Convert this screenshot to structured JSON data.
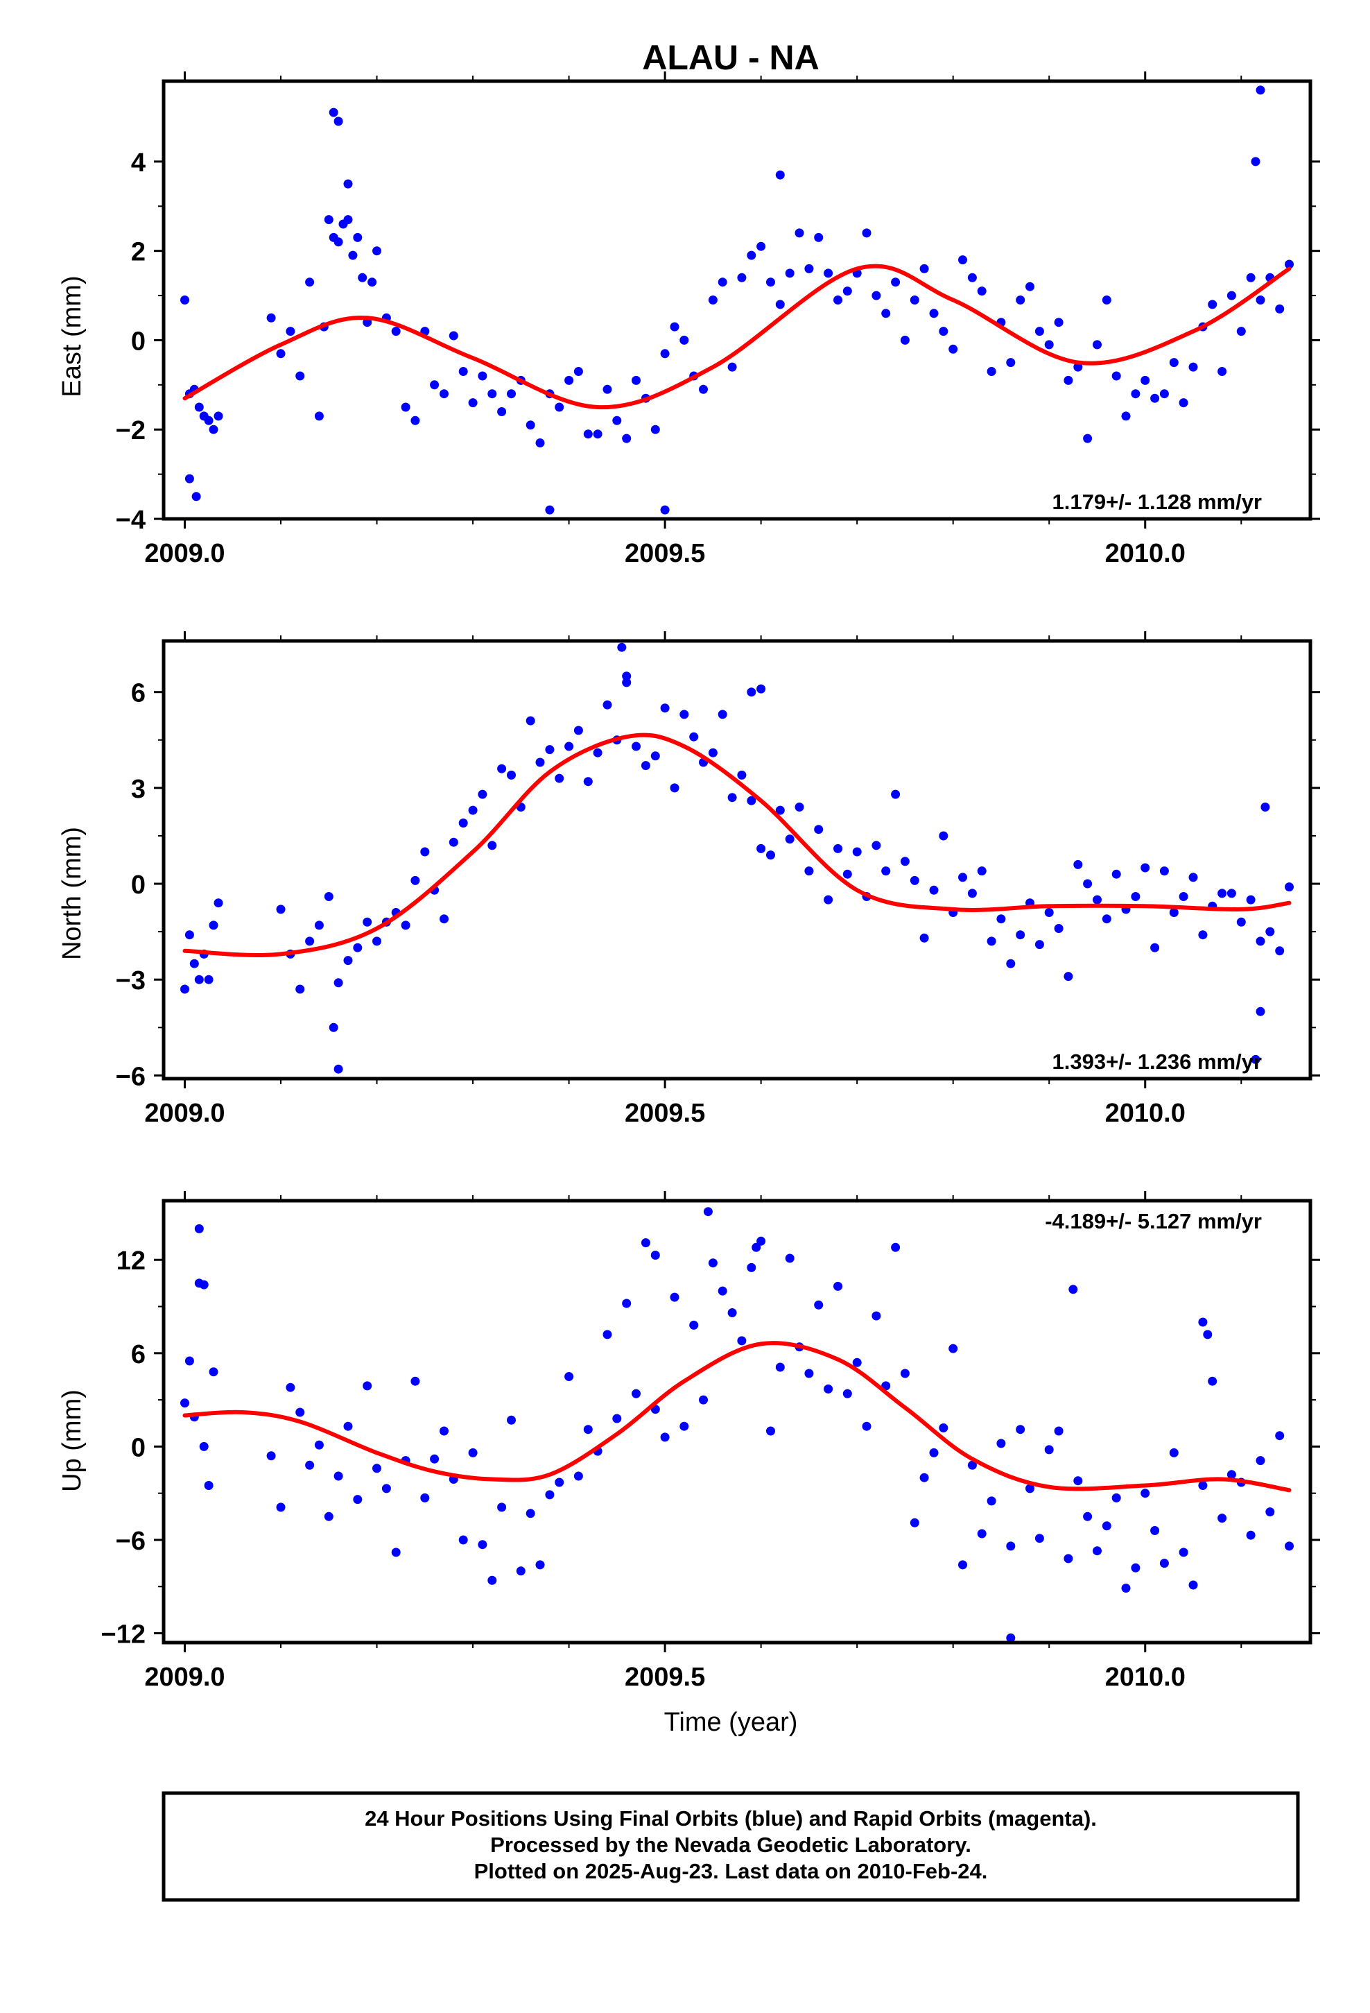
{
  "title": "ALAU - NA",
  "xlabel": "Time (year)",
  "footer": {
    "line1": "24 Hour Positions Using Final Orbits (blue) and Rapid Orbits (magenta).",
    "line2": "Processed by the Nevada Geodetic Laboratory.",
    "line3": "Plotted on 2025-Aug-23. Last data on 2010-Feb-24."
  },
  "colors": {
    "points": "#0000ff",
    "fit": "#ff0000",
    "frame": "#000000"
  },
  "chart_data": [
    {
      "type": "scatter",
      "name": "east",
      "ylabel": "East (mm)",
      "rate": "1.179+/- 1.128 mm/yr",
      "rate_position": "bottom-right",
      "xlim": [
        2008.978,
        2010.172
      ],
      "ylim": [
        -4.0,
        5.8
      ],
      "xticks": [
        2009.0,
        2009.5,
        2010.0
      ],
      "xtick_labels": [
        "2009.0",
        "2009.5",
        "2010.0"
      ],
      "yticks": [
        -4,
        -2,
        0,
        2,
        4
      ],
      "ytick_labels": [
        "−4",
        "−2",
        "0",
        "2",
        "4"
      ],
      "fit": {
        "x": [
          2009.0,
          2009.1,
          2009.19,
          2009.3,
          2009.43,
          2009.55,
          2009.7,
          2009.8,
          2009.93,
          2010.05,
          2010.15
        ],
        "y": [
          -1.3,
          -0.1,
          0.5,
          -0.4,
          -1.5,
          -0.6,
          1.6,
          0.9,
          -0.5,
          0.2,
          1.6
        ]
      },
      "points": {
        "x": [
          2009.0,
          2009.005,
          2009.01,
          2009.015,
          2009.02,
          2009.025,
          2009.03,
          2009.035,
          2009.09,
          2009.1,
          2009.11,
          2009.12,
          2009.13,
          2009.14,
          2009.145,
          2009.15,
          2009.155,
          2009.16,
          2009.165,
          2009.17,
          2009.175,
          2009.18,
          2009.185,
          2009.19,
          2009.195,
          2009.2,
          2009.21,
          2009.22,
          2009.23,
          2009.24,
          2009.25,
          2009.26,
          2009.27,
          2009.28,
          2009.29,
          2009.3,
          2009.31,
          2009.32,
          2009.33,
          2009.34,
          2009.35,
          2009.36,
          2009.37,
          2009.38,
          2009.39,
          2009.4,
          2009.41,
          2009.42,
          2009.43,
          2009.44,
          2009.45,
          2009.46,
          2009.47,
          2009.48,
          2009.49,
          2009.5,
          2009.51,
          2009.52,
          2009.53,
          2009.54,
          2009.55,
          2009.56,
          2009.57,
          2009.58,
          2009.59,
          2009.6,
          2009.61,
          2009.62,
          2009.63,
          2009.64,
          2009.65,
          2009.66,
          2009.67,
          2009.68,
          2009.69,
          2009.7,
          2009.71,
          2009.72,
          2009.73,
          2009.74,
          2009.75,
          2009.76,
          2009.77,
          2009.78,
          2009.79,
          2009.8,
          2009.81,
          2009.82,
          2009.83,
          2009.84,
          2009.85,
          2009.86,
          2009.87,
          2009.88,
          2009.89,
          2009.9,
          2009.91,
          2009.92,
          2009.93,
          2009.94,
          2009.95,
          2009.96,
          2009.97,
          2009.98,
          2009.99,
          2010.0,
          2010.01,
          2010.02,
          2010.03,
          2010.04,
          2010.05,
          2010.06,
          2010.07,
          2010.08,
          2010.09,
          2010.1,
          2010.11,
          2010.12,
          2010.13,
          2010.14,
          2010.15,
          2009.155,
          2009.16,
          2009.17,
          2009.38,
          2009.5,
          2009.62,
          2010.12,
          2010.115,
          2009.005,
          2009.012
        ],
        "y": [
          0.9,
          -1.2,
          -1.1,
          -1.5,
          -1.7,
          -1.8,
          -2.0,
          -1.7,
          0.5,
          -0.3,
          0.2,
          -0.8,
          1.3,
          -1.7,
          0.3,
          2.7,
          2.3,
          2.2,
          2.6,
          3.5,
          1.9,
          2.3,
          1.4,
          0.4,
          1.3,
          2.0,
          0.5,
          0.2,
          -1.5,
          -1.8,
          0.2,
          -1.0,
          -1.2,
          0.1,
          -0.7,
          -1.4,
          -0.8,
          -1.2,
          -1.6,
          -1.2,
          -0.9,
          -1.9,
          -2.3,
          -1.2,
          -1.5,
          -0.9,
          -0.7,
          -2.1,
          -2.1,
          -1.1,
          -1.8,
          -2.2,
          -0.9,
          -1.3,
          -2.0,
          -0.3,
          0.3,
          0.0,
          -0.8,
          -1.1,
          0.9,
          1.3,
          -0.6,
          1.4,
          1.9,
          2.1,
          1.3,
          0.8,
          1.5,
          2.4,
          1.6,
          2.3,
          1.5,
          0.9,
          1.1,
          1.5,
          2.4,
          1.0,
          0.6,
          1.3,
          0.0,
          0.9,
          1.6,
          0.6,
          0.2,
          -0.2,
          1.8,
          1.4,
          1.1,
          -0.7,
          0.4,
          -0.5,
          0.9,
          1.2,
          0.2,
          -0.1,
          0.4,
          -0.9,
          -0.6,
          -2.2,
          -0.1,
          0.9,
          -0.8,
          -1.7,
          -1.2,
          -0.9,
          -1.3,
          -1.2,
          -0.5,
          -1.4,
          -0.6,
          0.3,
          0.8,
          -0.7,
          1.0,
          0.2,
          1.4,
          0.9,
          1.4,
          0.7,
          1.7,
          5.1,
          4.9,
          2.7,
          -3.8,
          -3.8,
          3.7,
          5.6,
          4.0,
          -3.1,
          -3.5
        ],
        "rapid_x": [],
        "rapid_y": []
      }
    },
    {
      "type": "scatter",
      "name": "north",
      "ylabel": "North (mm)",
      "rate": "1.393+/- 1.236 mm/yr",
      "rate_position": "bottom-right",
      "xlim": [
        2008.978,
        2010.172
      ],
      "ylim": [
        -6.1,
        7.6
      ],
      "xticks": [
        2009.0,
        2009.5,
        2010.0
      ],
      "xtick_labels": [
        "2009.0",
        "2009.5",
        "2010.0"
      ],
      "yticks": [
        -6,
        -3,
        0,
        3,
        6
      ],
      "ytick_labels": [
        "−6",
        "−3",
        "0",
        "3",
        "6"
      ],
      "fit": {
        "x": [
          2009.0,
          2009.1,
          2009.2,
          2009.3,
          2009.38,
          2009.46,
          2009.52,
          2009.6,
          2009.7,
          2009.8,
          2009.9,
          2010.0,
          2010.1,
          2010.15
        ],
        "y": [
          -2.1,
          -2.2,
          -1.4,
          1.0,
          3.5,
          4.6,
          4.3,
          2.6,
          -0.2,
          -0.8,
          -0.7,
          -0.7,
          -0.8,
          -0.6
        ]
      },
      "points": {
        "x": [
          2009.0,
          2009.005,
          2009.01,
          2009.015,
          2009.02,
          2009.025,
          2009.03,
          2009.035,
          2009.1,
          2009.11,
          2009.12,
          2009.13,
          2009.14,
          2009.15,
          2009.16,
          2009.17,
          2009.18,
          2009.19,
          2009.2,
          2009.21,
          2009.22,
          2009.23,
          2009.24,
          2009.25,
          2009.26,
          2009.27,
          2009.28,
          2009.29,
          2009.3,
          2009.31,
          2009.32,
          2009.33,
          2009.34,
          2009.35,
          2009.36,
          2009.37,
          2009.38,
          2009.39,
          2009.4,
          2009.41,
          2009.42,
          2009.43,
          2009.44,
          2009.45,
          2009.46,
          2009.47,
          2009.48,
          2009.49,
          2009.5,
          2009.51,
          2009.52,
          2009.53,
          2009.54,
          2009.55,
          2009.56,
          2009.57,
          2009.58,
          2009.59,
          2009.6,
          2009.61,
          2009.62,
          2009.63,
          2009.64,
          2009.65,
          2009.66,
          2009.67,
          2009.68,
          2009.69,
          2009.7,
          2009.71,
          2009.72,
          2009.73,
          2009.74,
          2009.75,
          2009.76,
          2009.77,
          2009.78,
          2009.79,
          2009.8,
          2009.81,
          2009.82,
          2009.83,
          2009.84,
          2009.85,
          2009.86,
          2009.87,
          2009.88,
          2009.89,
          2009.9,
          2009.91,
          2009.92,
          2009.93,
          2009.94,
          2009.95,
          2009.96,
          2009.97,
          2009.98,
          2009.99,
          2010.0,
          2010.01,
          2010.02,
          2010.03,
          2010.04,
          2010.05,
          2010.06,
          2010.07,
          2010.08,
          2010.09,
          2010.1,
          2010.11,
          2010.12,
          2010.13,
          2010.14,
          2010.15,
          2009.155,
          2009.16,
          2009.455,
          2009.46,
          2009.59,
          2009.6,
          2010.12,
          2010.115,
          2010.125
        ],
        "y": [
          -3.3,
          -1.6,
          -2.5,
          -3.0,
          -2.2,
          -3.0,
          -1.3,
          -0.6,
          -0.8,
          -2.2,
          -3.3,
          -1.8,
          -1.3,
          -0.4,
          -3.1,
          -2.4,
          -2.0,
          -1.2,
          -1.8,
          -1.2,
          -0.9,
          -1.3,
          0.1,
          1.0,
          -0.2,
          -1.1,
          1.3,
          1.9,
          2.3,
          2.8,
          1.2,
          3.6,
          3.4,
          2.4,
          5.1,
          3.8,
          4.2,
          3.3,
          4.3,
          4.8,
          3.2,
          4.1,
          5.6,
          4.5,
          6.5,
          4.3,
          3.7,
          4.0,
          5.5,
          3.0,
          5.3,
          4.6,
          3.8,
          4.1,
          5.3,
          2.7,
          3.4,
          2.6,
          1.1,
          0.9,
          2.3,
          1.4,
          2.4,
          0.4,
          1.7,
          -0.5,
          1.1,
          0.3,
          1.0,
          -0.4,
          1.2,
          0.4,
          2.8,
          0.7,
          0.1,
          -1.7,
          -0.2,
          1.5,
          -0.9,
          0.2,
          -0.3,
          0.4,
          -1.8,
          -1.1,
          -2.5,
          -1.6,
          -0.6,
          -1.9,
          -0.9,
          -1.4,
          -2.9,
          0.6,
          0.0,
          -0.5,
          -1.1,
          0.3,
          -0.8,
          -0.4,
          0.5,
          -2.0,
          0.4,
          -0.9,
          -0.4,
          0.2,
          -1.6,
          -0.7,
          -0.3,
          -0.3,
          -1.2,
          -0.5,
          -1.8,
          -1.5,
          -2.1,
          -0.1,
          -4.5,
          -5.8,
          7.4,
          6.3,
          6.0,
          6.1,
          -4.0,
          -5.5,
          2.4
        ],
        "rapid_x": [],
        "rapid_y": []
      }
    },
    {
      "type": "scatter",
      "name": "up",
      "ylabel": "Up (mm)",
      "rate": "-4.189+/- 5.127 mm/yr",
      "rate_position": "top-right",
      "xlim": [
        2008.978,
        2010.172
      ],
      "ylim": [
        -12.6,
        15.8
      ],
      "xticks": [
        2009.0,
        2009.5,
        2010.0
      ],
      "xtick_labels": [
        "2009.0",
        "2009.5",
        "2010.0"
      ],
      "yticks": [
        -12,
        -6,
        0,
        6,
        12
      ],
      "ytick_labels": [
        "−12",
        "−6",
        "0",
        "6",
        "12"
      ],
      "fit": {
        "x": [
          2009.0,
          2009.06,
          2009.12,
          2009.2,
          2009.26,
          2009.32,
          2009.38,
          2009.45,
          2009.52,
          2009.6,
          2009.68,
          2009.75,
          2009.82,
          2009.9,
          2010.0,
          2010.08,
          2010.15
        ],
        "y": [
          2.0,
          2.2,
          1.6,
          -0.4,
          -1.6,
          -2.1,
          -1.8,
          0.8,
          4.2,
          6.6,
          5.6,
          2.5,
          -0.8,
          -2.6,
          -2.5,
          -2.1,
          -2.8
        ]
      },
      "points": {
        "x": [
          2009.0,
          2009.005,
          2009.01,
          2009.015,
          2009.02,
          2009.025,
          2009.03,
          2009.09,
          2009.1,
          2009.11,
          2009.12,
          2009.13,
          2009.14,
          2009.15,
          2009.16,
          2009.17,
          2009.18,
          2009.19,
          2009.2,
          2009.21,
          2009.22,
          2009.23,
          2009.24,
          2009.25,
          2009.26,
          2009.27,
          2009.28,
          2009.29,
          2009.3,
          2009.31,
          2009.32,
          2009.33,
          2009.34,
          2009.35,
          2009.36,
          2009.37,
          2009.38,
          2009.39,
          2009.4,
          2009.41,
          2009.42,
          2009.43,
          2009.44,
          2009.45,
          2009.46,
          2009.47,
          2009.48,
          2009.49,
          2009.5,
          2009.51,
          2009.52,
          2009.53,
          2009.54,
          2009.55,
          2009.56,
          2009.57,
          2009.58,
          2009.59,
          2009.6,
          2009.61,
          2009.62,
          2009.63,
          2009.64,
          2009.65,
          2009.66,
          2009.67,
          2009.68,
          2009.69,
          2009.7,
          2009.71,
          2009.72,
          2009.73,
          2009.74,
          2009.75,
          2009.76,
          2009.77,
          2009.78,
          2009.79,
          2009.8,
          2009.81,
          2009.82,
          2009.83,
          2009.84,
          2009.85,
          2009.86,
          2009.87,
          2009.88,
          2009.89,
          2009.9,
          2009.91,
          2009.92,
          2009.93,
          2009.94,
          2009.95,
          2009.96,
          2009.97,
          2009.98,
          2009.99,
          2010.0,
          2010.01,
          2010.02,
          2010.03,
          2010.04,
          2010.05,
          2010.06,
          2010.07,
          2010.08,
          2010.09,
          2010.1,
          2010.11,
          2010.12,
          2010.13,
          2010.14,
          2010.15,
          2009.015,
          2009.02,
          2009.49,
          2009.545,
          2009.595,
          2009.86,
          2009.925,
          2010.06,
          2010.065
        ],
        "y": [
          2.8,
          5.5,
          1.9,
          10.5,
          0.0,
          -2.5,
          4.8,
          -0.6,
          -3.9,
          3.8,
          2.2,
          -1.2,
          0.1,
          -4.5,
          -1.9,
          1.3,
          -3.4,
          3.9,
          -1.4,
          -2.7,
          -6.8,
          -0.9,
          4.2,
          -3.3,
          -0.8,
          1.0,
          -2.1,
          -6.0,
          -0.4,
          -6.3,
          -8.6,
          -3.9,
          1.7,
          -8.0,
          -4.3,
          -7.6,
          -3.1,
          -2.3,
          4.5,
          -1.9,
          1.1,
          -0.3,
          7.2,
          1.8,
          9.2,
          3.4,
          13.1,
          2.4,
          0.6,
          9.6,
          1.3,
          7.8,
          3.0,
          11.8,
          10.0,
          8.6,
          6.8,
          11.5,
          13.2,
          1.0,
          5.1,
          12.1,
          6.4,
          4.7,
          9.1,
          3.7,
          10.3,
          3.4,
          5.4,
          1.3,
          8.4,
          3.9,
          12.8,
          4.7,
          -4.9,
          -2.0,
          -0.4,
          1.2,
          6.3,
          -7.6,
          -1.2,
          -5.6,
          -3.5,
          0.2,
          -6.4,
          1.1,
          -2.7,
          -5.9,
          -0.2,
          1.0,
          -7.2,
          -2.2,
          -4.5,
          -6.7,
          -5.1,
          -3.3,
          -9.1,
          -7.8,
          -3.0,
          -5.4,
          -7.5,
          -0.4,
          -6.8,
          -8.9,
          -2.5,
          4.2,
          -4.6,
          -1.8,
          -2.3,
          -5.7,
          -0.9,
          -4.2,
          0.7,
          -6.4,
          14.0,
          10.4,
          12.3,
          15.1,
          12.8,
          -12.3,
          10.1,
          8.0,
          7.2
        ],
        "rapid_x": [],
        "rapid_y": []
      }
    }
  ]
}
